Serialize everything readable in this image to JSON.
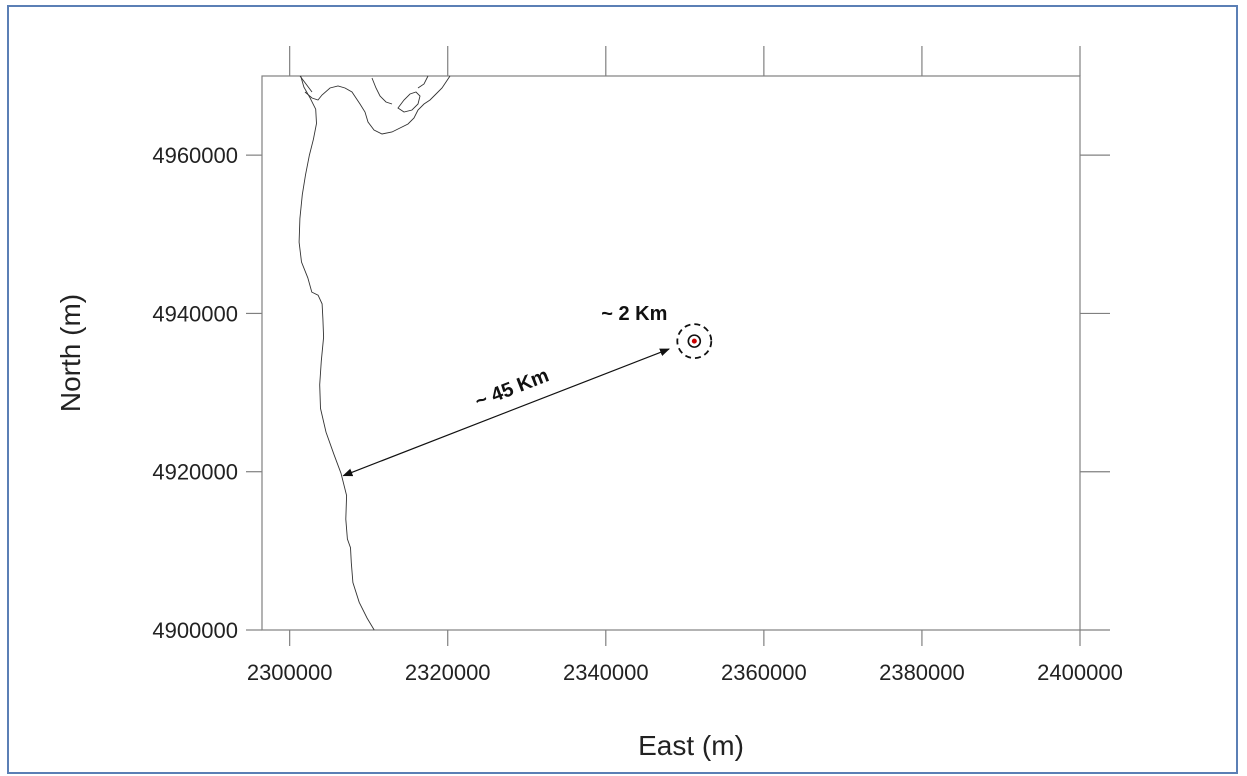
{
  "chart_data": {
    "type": "map",
    "xlabel": "East (m)",
    "ylabel": "North (m)",
    "xlim": [
      2296500,
      2400000
    ],
    "ylim": [
      4900000,
      4970000
    ],
    "x_ticks": [
      2300000,
      2320000,
      2340000,
      2360000,
      2380000,
      2400000
    ],
    "y_ticks": [
      4900000,
      4920000,
      4940000,
      4960000
    ],
    "x_tick_labels": [
      "2300000",
      "2320000",
      "2340000",
      "2360000",
      "2380000",
      "2400000"
    ],
    "y_tick_labels": [
      "4900000",
      "4920000",
      "4940000",
      "4960000"
    ],
    "site": {
      "x": 2351200,
      "y": 4936500
    },
    "arrow": {
      "from": [
        2306800,
        4919500
      ],
      "to": [
        2348000,
        4935500
      ]
    },
    "annotations": {
      "distance_label": "~ 45 Km",
      "radius_label": "~ 2 Km"
    },
    "coastline": [
      [
        2301400,
        4970000
      ],
      [
        2301800,
        4968600
      ],
      [
        2302600,
        4967200
      ],
      [
        2303300,
        4965800
      ],
      [
        2303400,
        4964000
      ],
      [
        2303000,
        4962000
      ],
      [
        2302500,
        4960000
      ],
      [
        2302000,
        4957500
      ],
      [
        2301600,
        4955000
      ],
      [
        2301300,
        4952000
      ],
      [
        2301200,
        4949000
      ],
      [
        2301500,
        4946500
      ],
      [
        2302300,
        4944500
      ],
      [
        2302800,
        4942700
      ],
      [
        2303600,
        4942300
      ],
      [
        2304100,
        4941200
      ],
      [
        2304200,
        4939300
      ],
      [
        2304300,
        4937000
      ],
      [
        2304000,
        4934000
      ],
      [
        2303800,
        4931000
      ],
      [
        2303900,
        4928000
      ],
      [
        2304600,
        4925000
      ],
      [
        2305600,
        4922200
      ],
      [
        2306500,
        4919800
      ],
      [
        2307200,
        4917000
      ],
      [
        2307100,
        4914000
      ],
      [
        2307300,
        4911500
      ],
      [
        2307700,
        4910400
      ],
      [
        2307800,
        4908500
      ],
      [
        2308000,
        4906000
      ],
      [
        2308800,
        4903500
      ],
      [
        2309800,
        4901500
      ],
      [
        2310700,
        4900000
      ]
    ]
  },
  "colors": {
    "frame_border": "#5b7fb5",
    "axis": "#808080",
    "site_dot": "#cc0000"
  }
}
